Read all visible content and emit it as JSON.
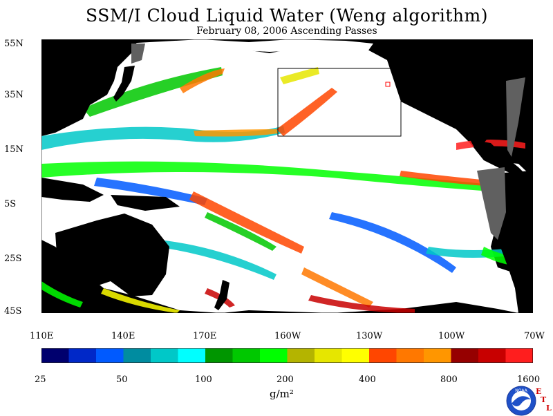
{
  "title": "SSM/I Cloud Liquid Water (Weng algorithm)",
  "subtitle": "February 08, 2006  Ascending Passes",
  "lat_ticks": [
    "55N",
    "35N",
    "15N",
    "5S",
    "25S",
    "45S"
  ],
  "lon_ticks": [
    "110E",
    "140E",
    "170E",
    "160W",
    "130W",
    "100W",
    "70W"
  ],
  "colorbar": {
    "colors": [
      "#00006e",
      "#0028c8",
      "#005aff",
      "#008ca0",
      "#00c8c8",
      "#00ffff",
      "#009600",
      "#00c800",
      "#00ff00",
      "#b4b400",
      "#e6e600",
      "#ffff00",
      "#ff4600",
      "#ff7800",
      "#ff9600",
      "#960000",
      "#c80000",
      "#ff1e1e"
    ],
    "labels": [
      "25",
      "50",
      "100",
      "200",
      "400",
      "800",
      "1600"
    ]
  },
  "units": "g/m²",
  "logo": {
    "name": "NOAA",
    "lab_letters": [
      "E",
      "T",
      "L"
    ]
  }
}
